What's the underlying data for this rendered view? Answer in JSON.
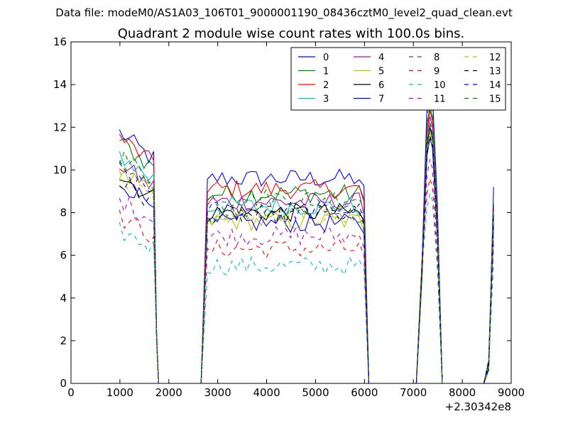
{
  "suptitle": "Data file: modeM0/AS1A03_106T01_9000001190_08436cztM0_level2_quad_clean.evt",
  "chart_data": {
    "type": "line",
    "title": "Quadrant 2 module wise count rates with 100.0s bins.",
    "xlabel": "",
    "ylabel": "",
    "x_offset_label": "+2.30342e8",
    "xlim": [
      0,
      9000
    ],
    "ylim": [
      0,
      16
    ],
    "xticks": [
      0,
      1000,
      2000,
      3000,
      4000,
      5000,
      6000,
      7000,
      8000,
      9000
    ],
    "yticks": [
      0,
      2,
      4,
      6,
      8,
      10,
      12,
      14,
      16
    ],
    "grid": false,
    "legend": {
      "placement": "top-right",
      "columns": 4
    },
    "gti_segments": [
      {
        "x_start": 990,
        "x_end": 1590,
        "gap_start": 1790,
        "gap_end": 2660,
        "rise": 2790
      },
      {
        "x_start": 2790,
        "x_end": 5890,
        "gap_start": 6090,
        "gap_end": 7060,
        "rise": 7190
      },
      {
        "x_start": 7290,
        "x_end": 7390,
        "gap_start": 7590,
        "gap_end": 8440,
        "rise": 8590
      }
    ],
    "series": [
      {
        "name": "0",
        "color": "#0000ff",
        "dash": "solid",
        "level_a": 11.2,
        "level_b": 9.6,
        "peak3": 14.1,
        "end": 9.2
      },
      {
        "name": "1",
        "color": "#008000",
        "dash": "solid",
        "level_a": 10.8,
        "level_b": 8.9,
        "peak3": 13.0,
        "end": 8.3
      },
      {
        "name": "2",
        "color": "#ff0000",
        "dash": "solid",
        "level_a": 11.0,
        "level_b": 9.1,
        "peak3": 12.8,
        "end": 8.2
      },
      {
        "name": "3",
        "color": "#00bfbf",
        "dash": "solid",
        "level_a": 10.2,
        "level_b": 8.3,
        "peak3": 12.0,
        "end": 7.8
      },
      {
        "name": "4",
        "color": "#bf00bf",
        "dash": "solid",
        "level_a": 9.8,
        "level_b": 8.5,
        "peak3": 12.5,
        "end": 8.0
      },
      {
        "name": "5",
        "color": "#bfbf00",
        "dash": "solid",
        "level_a": 9.4,
        "level_b": 7.6,
        "peak3": 11.8,
        "end": 7.6
      },
      {
        "name": "6",
        "color": "#000000",
        "dash": "solid",
        "level_a": 9.3,
        "level_b": 8.0,
        "peak3": 12.0,
        "end": 7.9
      },
      {
        "name": "7",
        "color": "#0000ff",
        "dash": "solid",
        "level_a": 9.0,
        "level_b": 7.5,
        "peak3": 11.5,
        "end": 7.4
      },
      {
        "name": "8",
        "color": "#008000",
        "dash": "dashed",
        "level_a": 10.2,
        "level_b": 8.7,
        "peak3": 13.4,
        "end": 8.4
      },
      {
        "name": "9",
        "color": "#ff0000",
        "dash": "dashed",
        "level_a": 7.4,
        "level_b": 6.3,
        "peak3": 9.6,
        "end": 6.5
      },
      {
        "name": "10",
        "color": "#00bfbf",
        "dash": "dashed",
        "level_a": 6.8,
        "level_b": 5.5,
        "peak3": 8.9,
        "end": 5.6
      },
      {
        "name": "11",
        "color": "#bf00bf",
        "dash": "dashed",
        "level_a": 8.2,
        "level_b": 6.9,
        "peak3": 10.5,
        "end": 6.9
      },
      {
        "name": "12",
        "color": "#bfbf00",
        "dash": "dashed",
        "level_a": 9.2,
        "level_b": 7.8,
        "peak3": 12.3,
        "end": 8.1
      },
      {
        "name": "13",
        "color": "#000000",
        "dash": "dashed",
        "level_a": 9.0,
        "level_b": 7.9,
        "peak3": 11.6,
        "end": 7.7
      },
      {
        "name": "14",
        "color": "#0000ff",
        "dash": "dashed",
        "level_a": 9.5,
        "level_b": 8.1,
        "peak3": 12.1,
        "end": 7.9
      },
      {
        "name": "15",
        "color": "#008000",
        "dash": "dashed",
        "level_a": 9.6,
        "level_b": 8.0,
        "peak3": 12.2,
        "end": 8.0
      }
    ]
  }
}
